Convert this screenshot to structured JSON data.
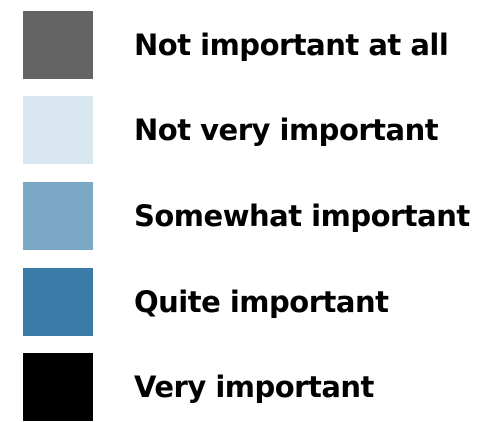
{
  "chart_data": {
    "type": "legend",
    "legend": [
      {
        "label": "Not important at all",
        "color": "#646464"
      },
      {
        "label": "Not very important",
        "color": "#d8e6ef"
      },
      {
        "label": "Somewhat important",
        "color": "#7aa8c5"
      },
      {
        "label": "Quite important",
        "color": "#3a7ca7"
      },
      {
        "label": "Very important",
        "color": "#000000"
      }
    ]
  }
}
